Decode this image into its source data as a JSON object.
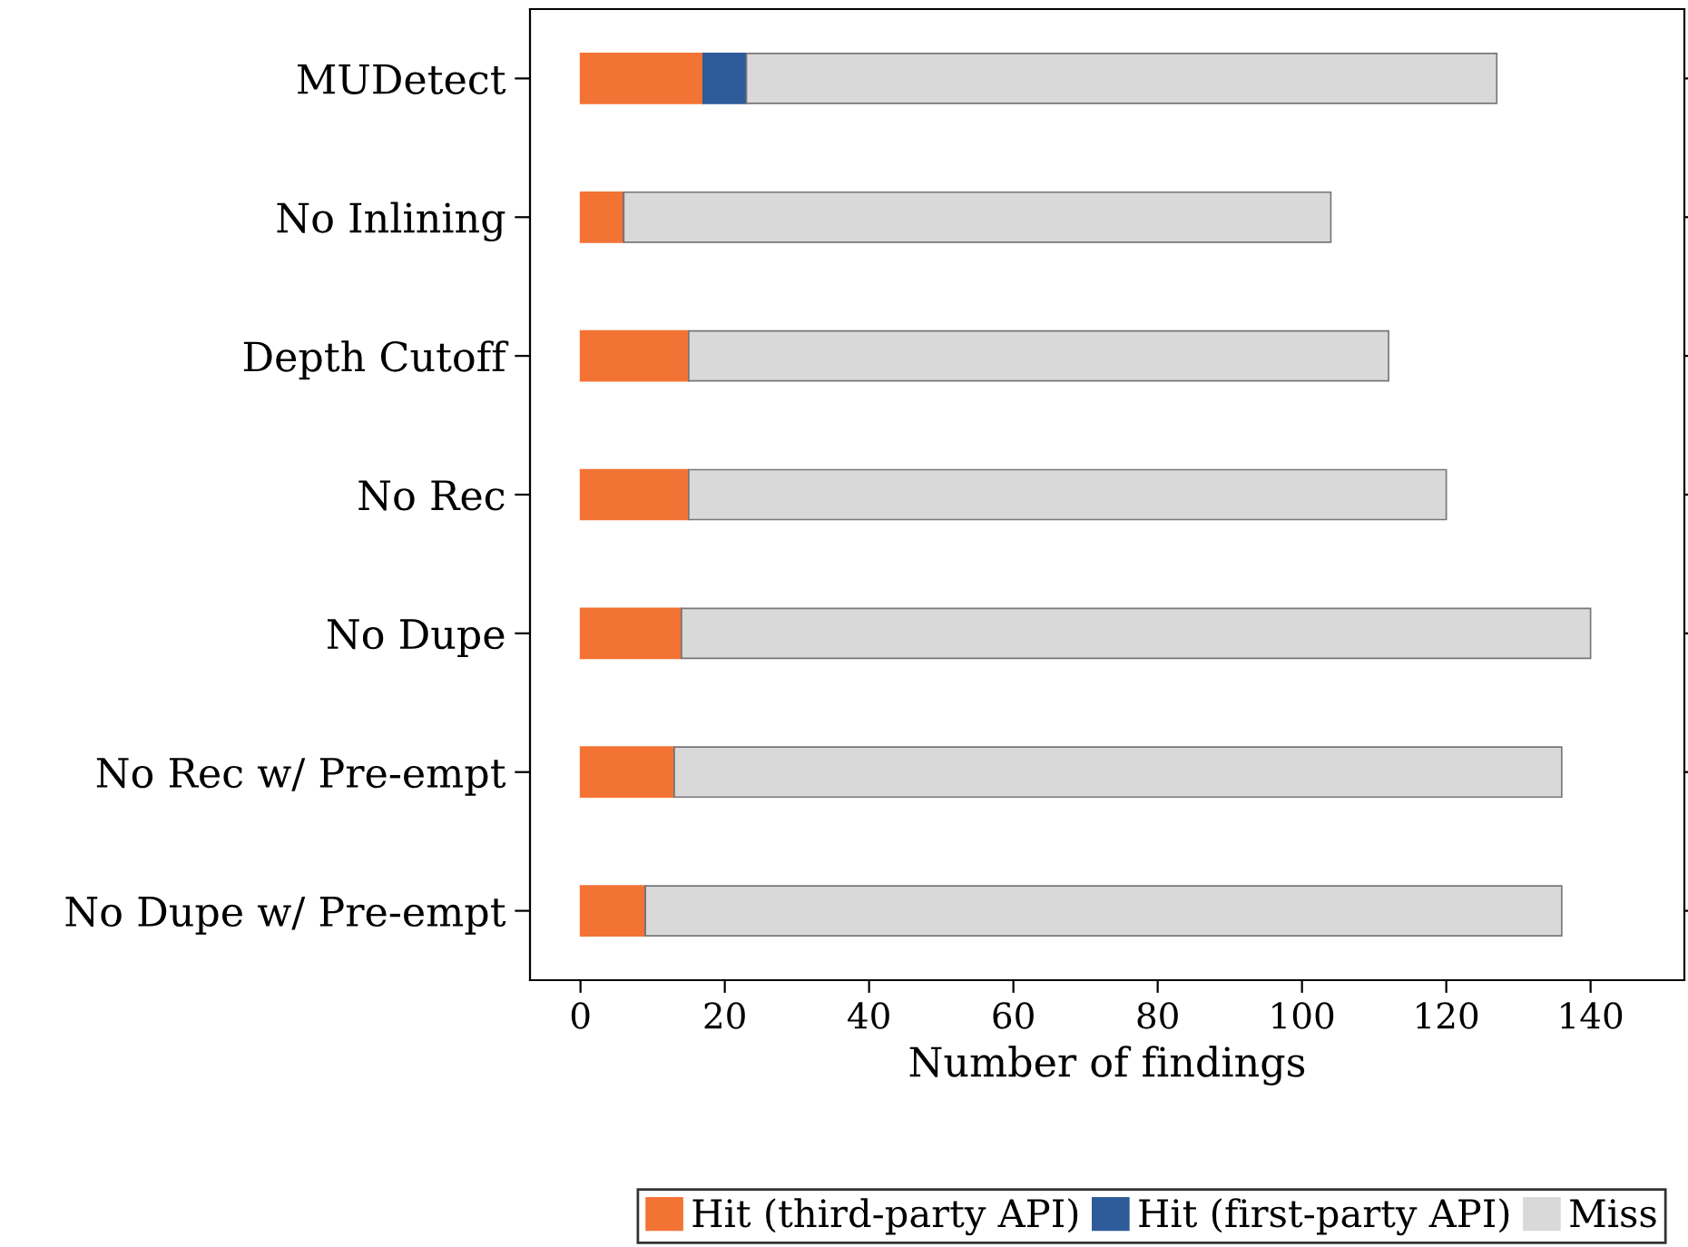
{
  "chart_data": {
    "type": "bar",
    "orientation": "horizontal",
    "stacked": true,
    "xlabel": "Number of findings",
    "categories": [
      "MUDetect",
      "No Inlining",
      "Depth Cutoff",
      "No Rec",
      "No Dupe",
      "No Rec w/ Pre-empt",
      "No Dupe w/ Pre-empt"
    ],
    "series": [
      {
        "name": "Hit (third-party API)",
        "color": "#f37335",
        "values": [
          17,
          6,
          15,
          15,
          14,
          13,
          9
        ]
      },
      {
        "name": "Hit (first-party API)",
        "color": "#2e5b9a",
        "values": [
          6,
          0,
          0,
          0,
          0,
          0,
          0
        ]
      },
      {
        "name": "Miss",
        "color": "#d9d9d9",
        "values": [
          104,
          98,
          97,
          105,
          126,
          123,
          127
        ]
      }
    ],
    "xlim": [
      -7,
      153
    ],
    "xticks": [
      0,
      20,
      40,
      60,
      80,
      100,
      120,
      140
    ],
    "grid": false,
    "legend": "bottom"
  }
}
